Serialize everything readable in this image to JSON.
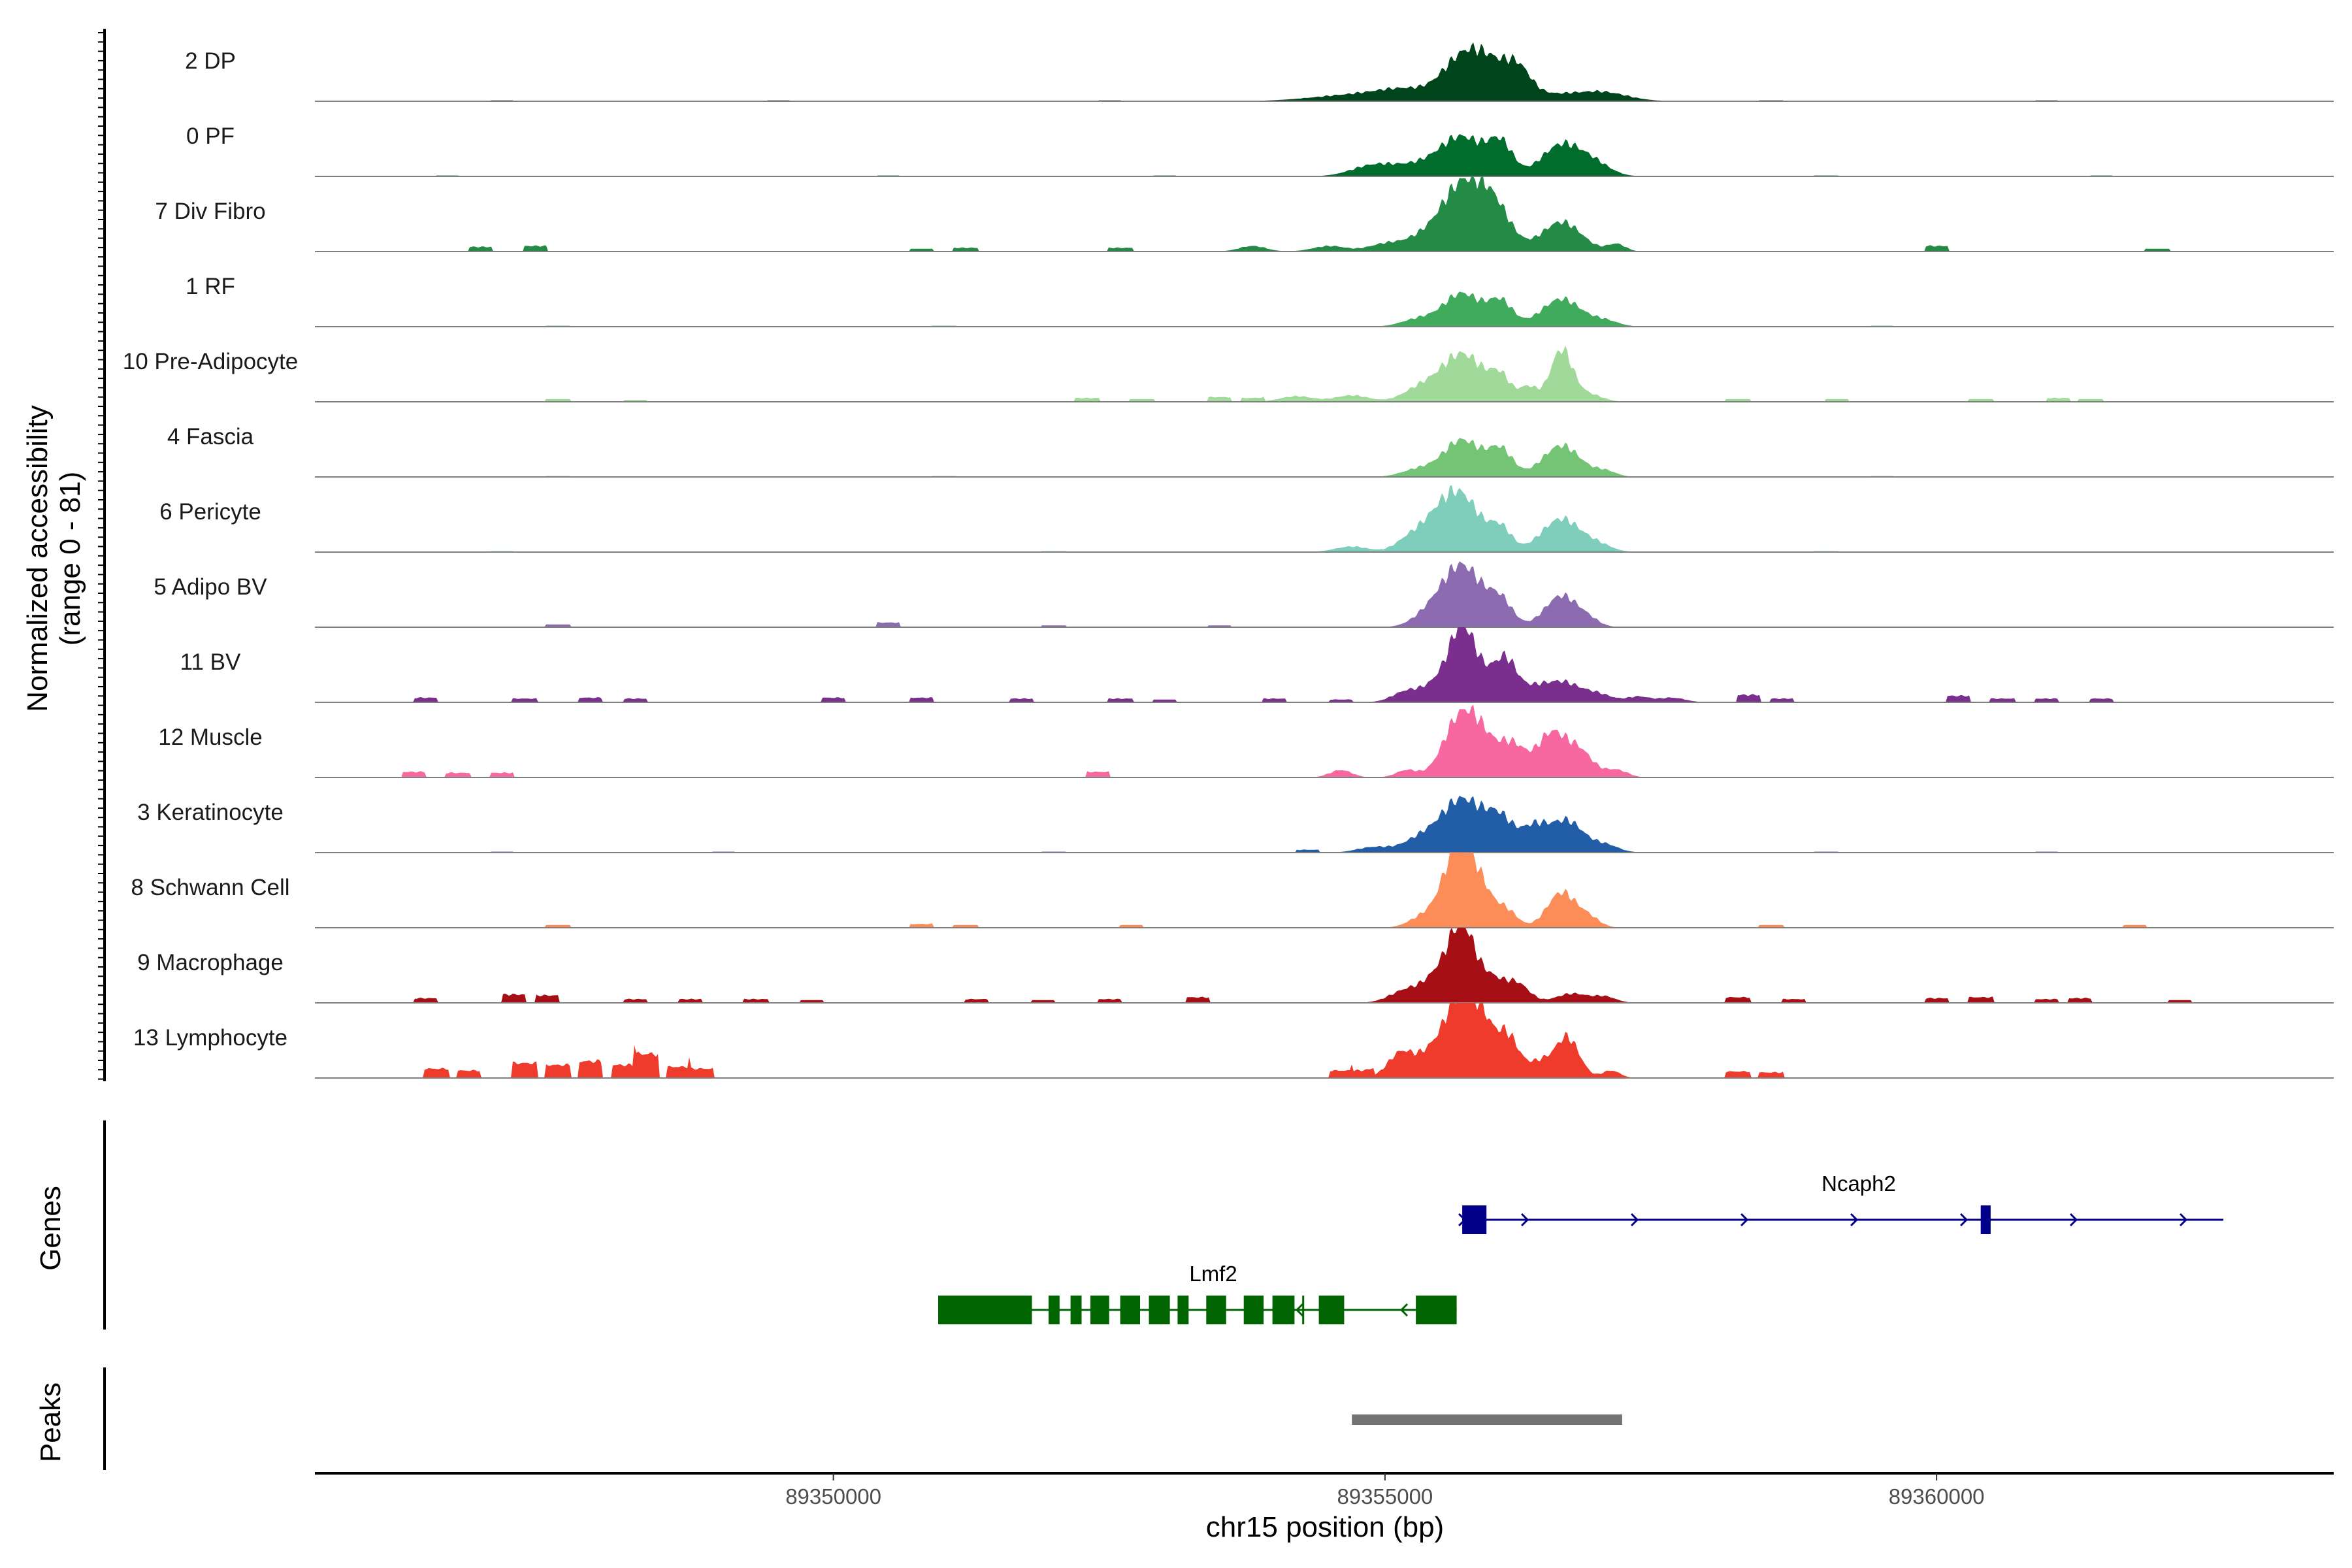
{
  "chart_data": {
    "type": "area",
    "ylabel_line1": "Normalized accessibility",
    "ylabel_line2": "(range 0 - 81)",
    "xlabel": "chr15 position (bp)",
    "xlim": [
      89345300,
      89363600
    ],
    "x_ticks": [
      89350000,
      89355000,
      89360000
    ],
    "x_tick_labels": [
      "89350000",
      "89355000",
      "89360000"
    ],
    "track_max": 81,
    "tracks": [
      {
        "name": "2 DP",
        "color": "#00441b",
        "peaks": [
          [
            89354750,
            7,
            400
          ],
          [
            89355200,
            10,
            250
          ],
          [
            89355700,
            44,
            180
          ],
          [
            89355950,
            28,
            150
          ],
          [
            89356200,
            30,
            120
          ],
          [
            89356550,
            8,
            400
          ],
          [
            89357000,
            6,
            200
          ]
        ],
        "noise": [
          [
            89347000,
            1
          ],
          [
            89349500,
            1
          ],
          [
            89352500,
            1
          ],
          [
            89358500,
            1
          ],
          [
            89361000,
            1
          ]
        ]
      },
      {
        "name": "0 PF",
        "color": "#006d2c",
        "peaks": [
          [
            89354900,
            12,
            200
          ],
          [
            89355300,
            10,
            200
          ],
          [
            89355700,
            42,
            200
          ],
          [
            89356050,
            32,
            110
          ],
          [
            89356600,
            34,
            180
          ],
          [
            89356900,
            12,
            150
          ]
        ],
        "noise": [
          [
            89346500,
            1
          ],
          [
            89350500,
            1
          ],
          [
            89353000,
            1
          ],
          [
            89359000,
            1
          ],
          [
            89361500,
            1
          ]
        ]
      },
      {
        "name": "7 Div Fibro",
        "color": "#238b45",
        "peaks": [
          [
            89354500,
            6,
            150
          ],
          [
            89355000,
            8,
            150
          ],
          [
            89355300,
            10,
            150
          ],
          [
            89355700,
            72,
            200
          ],
          [
            89356000,
            38,
            150
          ],
          [
            89356600,
            32,
            180
          ],
          [
            89357100,
            8,
            80
          ],
          [
            89353800,
            6,
            120
          ]
        ],
        "noise": [
          [
            89346800,
            5
          ],
          [
            89347300,
            6
          ],
          [
            89350800,
            3
          ],
          [
            89351200,
            4
          ],
          [
            89352600,
            4
          ],
          [
            89360000,
            6
          ],
          [
            89362000,
            3
          ]
        ]
      },
      {
        "name": "1 RF",
        "color": "#41ab5d",
        "peaks": [
          [
            89355300,
            8,
            150
          ],
          [
            89355700,
            36,
            170
          ],
          [
            89356050,
            26,
            110
          ],
          [
            89356600,
            30,
            180
          ],
          [
            89357000,
            6,
            120
          ]
        ],
        "noise": [
          [
            89347500,
            1
          ],
          [
            89351000,
            1
          ],
          [
            89359500,
            1
          ]
        ]
      },
      {
        "name": "10 Pre-Adipocyte",
        "color": "#a1d99b",
        "peaks": [
          [
            89354200,
            6,
            150
          ],
          [
            89354700,
            7,
            150
          ],
          [
            89355300,
            12,
            150
          ],
          [
            89355700,
            52,
            200
          ],
          [
            89356050,
            22,
            90
          ],
          [
            89356300,
            16,
            80
          ],
          [
            89356600,
            56,
            100
          ],
          [
            89356850,
            8,
            120
          ]
        ],
        "noise": [
          [
            89347500,
            3
          ],
          [
            89348200,
            2
          ],
          [
            89352300,
            4
          ],
          [
            89352800,
            3
          ],
          [
            89353500,
            5
          ],
          [
            89353800,
            4
          ],
          [
            89358200,
            3
          ],
          [
            89359100,
            3
          ],
          [
            89360400,
            3
          ],
          [
            89361100,
            4
          ],
          [
            89361400,
            3
          ]
        ]
      },
      {
        "name": "4 Fascia",
        "color": "#74c476",
        "peaks": [
          [
            89355300,
            8,
            150
          ],
          [
            89355700,
            40,
            170
          ],
          [
            89356050,
            28,
            110
          ],
          [
            89356600,
            34,
            170
          ],
          [
            89357000,
            6,
            100
          ]
        ],
        "noise": [
          [
            89347500,
            1
          ],
          [
            89351000,
            1
          ],
          [
            89359500,
            1
          ]
        ]
      },
      {
        "name": "6 Pericyte",
        "color": "#7fcdbb",
        "peaks": [
          [
            89354700,
            6,
            150
          ],
          [
            89355200,
            10,
            120
          ],
          [
            89355450,
            28,
            160
          ],
          [
            89355700,
            56,
            170
          ],
          [
            89356050,
            24,
            100
          ],
          [
            89356600,
            36,
            180
          ],
          [
            89356950,
            6,
            120
          ]
        ],
        "noise": [
          [
            89347000,
            1
          ],
          [
            89352000,
            1
          ],
          [
            89359000,
            1
          ]
        ]
      },
      {
        "name": "5 Adipo BV",
        "color": "#8c6bb1",
        "peaks": [
          [
            89355400,
            12,
            150
          ],
          [
            89355700,
            66,
            180
          ],
          [
            89356050,
            26,
            110
          ],
          [
            89356600,
            34,
            150
          ],
          [
            89356850,
            6,
            100
          ]
        ],
        "noise": [
          [
            89347500,
            3
          ],
          [
            89350500,
            5
          ],
          [
            89352000,
            2
          ],
          [
            89353500,
            2
          ]
        ]
      },
      {
        "name": "11 BV",
        "color": "#7a2e8e",
        "peaks": [
          [
            89355200,
            12,
            130
          ],
          [
            89355500,
            22,
            130
          ],
          [
            89355700,
            72,
            110
          ],
          [
            89355900,
            24,
            120
          ],
          [
            89356100,
            42,
            100
          ],
          [
            89356350,
            14,
            120
          ],
          [
            89356600,
            20,
            140
          ],
          [
            89356900,
            10,
            150
          ],
          [
            89357300,
            6,
            100
          ],
          [
            89357600,
            5,
            120
          ]
        ],
        "noise": [
          [
            89346300,
            5
          ],
          [
            89347200,
            4
          ],
          [
            89347800,
            5
          ],
          [
            89348200,
            4
          ],
          [
            89350000,
            5
          ],
          [
            89350800,
            5
          ],
          [
            89351700,
            4
          ],
          [
            89352600,
            4
          ],
          [
            89353000,
            3
          ],
          [
            89354000,
            4
          ],
          [
            89354600,
            3
          ],
          [
            89358300,
            8
          ],
          [
            89358600,
            4
          ],
          [
            89360200,
            7
          ],
          [
            89360600,
            4
          ],
          [
            89361000,
            4
          ],
          [
            89361500,
            4
          ]
        ]
      },
      {
        "name": "12 Muscle",
        "color": "#f768a1",
        "peaks": [
          [
            89354600,
            8,
            100
          ],
          [
            89355200,
            8,
            100
          ],
          [
            89355650,
            54,
            140
          ],
          [
            89355850,
            42,
            130
          ],
          [
            89356150,
            36,
            130
          ],
          [
            89356500,
            44,
            120
          ],
          [
            89356750,
            30,
            130
          ],
          [
            89357100,
            8,
            100
          ]
        ],
        "noise": [
          [
            89346200,
            6
          ],
          [
            89346600,
            5
          ],
          [
            89347000,
            5
          ],
          [
            89352400,
            6
          ]
        ]
      },
      {
        "name": "3 Keratinocyte",
        "color": "#225ea8",
        "peaks": [
          [
            89354900,
            6,
            150
          ],
          [
            89355300,
            12,
            150
          ],
          [
            89355700,
            58,
            200
          ],
          [
            89356050,
            30,
            120
          ],
          [
            89356350,
            26,
            120
          ],
          [
            89356650,
            34,
            150
          ],
          [
            89357000,
            8,
            120
          ]
        ],
        "noise": [
          [
            89347000,
            1
          ],
          [
            89349000,
            1
          ],
          [
            89352000,
            1
          ],
          [
            89354300,
            3
          ],
          [
            89359000,
            1
          ],
          [
            89361000,
            1
          ]
        ]
      },
      {
        "name": "8 Schwann Cell",
        "color": "#fc8d59",
        "peaks": [
          [
            89355350,
            12,
            130
          ],
          [
            89355650,
            80,
            130
          ],
          [
            89355850,
            40,
            120
          ],
          [
            89356100,
            18,
            100
          ],
          [
            89356600,
            38,
            130
          ],
          [
            89356850,
            10,
            100
          ]
        ],
        "noise": [
          [
            89347500,
            3
          ],
          [
            89350800,
            4
          ],
          [
            89351200,
            3
          ],
          [
            89352700,
            3
          ],
          [
            89358500,
            3
          ],
          [
            89361800,
            3
          ]
        ]
      },
      {
        "name": "9 Macrophage",
        "color": "#a50f15",
        "peaks": [
          [
            89355200,
            14,
            150
          ],
          [
            89355500,
            30,
            130
          ],
          [
            89355700,
            76,
            110
          ],
          [
            89355950,
            26,
            120
          ],
          [
            89356200,
            20,
            110
          ],
          [
            89356700,
            10,
            150
          ],
          [
            89357000,
            6,
            100
          ]
        ],
        "noise": [
          [
            89346300,
            5
          ],
          [
            89347100,
            9
          ],
          [
            89347400,
            8
          ],
          [
            89348200,
            4
          ],
          [
            89348700,
            4
          ],
          [
            89349300,
            4
          ],
          [
            89349800,
            3
          ],
          [
            89351300,
            4
          ],
          [
            89351900,
            3
          ],
          [
            89352500,
            4
          ],
          [
            89353300,
            6
          ],
          [
            89358200,
            6
          ],
          [
            89358700,
            4
          ],
          [
            89360000,
            5
          ],
          [
            89360400,
            6
          ],
          [
            89361000,
            4
          ],
          [
            89361300,
            5
          ],
          [
            89362200,
            3
          ]
        ]
      },
      {
        "name": "13 Lymphocyte",
        "color": "#ef3b2c",
        "peaks": [
          [
            89355150,
            28,
            120
          ],
          [
            89355450,
            32,
            120
          ],
          [
            89355650,
            72,
            100
          ],
          [
            89355850,
            70,
            100
          ],
          [
            89356100,
            48,
            110
          ],
          [
            89356400,
            16,
            100
          ],
          [
            89356650,
            44,
            110
          ],
          [
            89357050,
            8,
            80
          ]
        ],
        "noise": [
          [
            89346400,
            10
          ],
          [
            89346700,
            8
          ],
          [
            89347200,
            16
          ],
          [
            89347500,
            14
          ],
          [
            89347800,
            18
          ],
          [
            89348100,
            14
          ],
          [
            89348300,
            26
          ],
          [
            89348600,
            12
          ],
          [
            89348800,
            10
          ],
          [
            89354600,
            8
          ],
          [
            89354800,
            8
          ],
          [
            89358200,
            7
          ],
          [
            89358500,
            6
          ]
        ]
      }
    ],
    "genes": [
      {
        "name": "Ncaph2",
        "start": 89355700,
        "end": 89362600,
        "strand": "+",
        "color": "#00008b",
        "exons": [
          [
            89355700,
            89355920
          ],
          [
            89360400,
            89360490
          ]
        ]
      },
      {
        "name": "Lmf2",
        "start": 89350950,
        "end": 89355650,
        "strand": "-",
        "color": "#006400",
        "exons": [
          [
            89350950,
            89351800
          ],
          [
            89351950,
            89352050
          ],
          [
            89352150,
            89352250
          ],
          [
            89352330,
            89352500
          ],
          [
            89352600,
            89352780
          ],
          [
            89352860,
            89353050
          ],
          [
            89353120,
            89353220
          ],
          [
            89353380,
            89353560
          ],
          [
            89353720,
            89353900
          ],
          [
            89353980,
            89354180
          ],
          [
            89354400,
            89354630
          ],
          [
            89355280,
            89355650
          ]
        ],
        "noncoding": [
          [
            89354250,
            89354320
          ]
        ]
      }
    ],
    "peaks_track": [
      [
        89354700,
        89357150
      ]
    ],
    "peak_color": "#737373"
  }
}
